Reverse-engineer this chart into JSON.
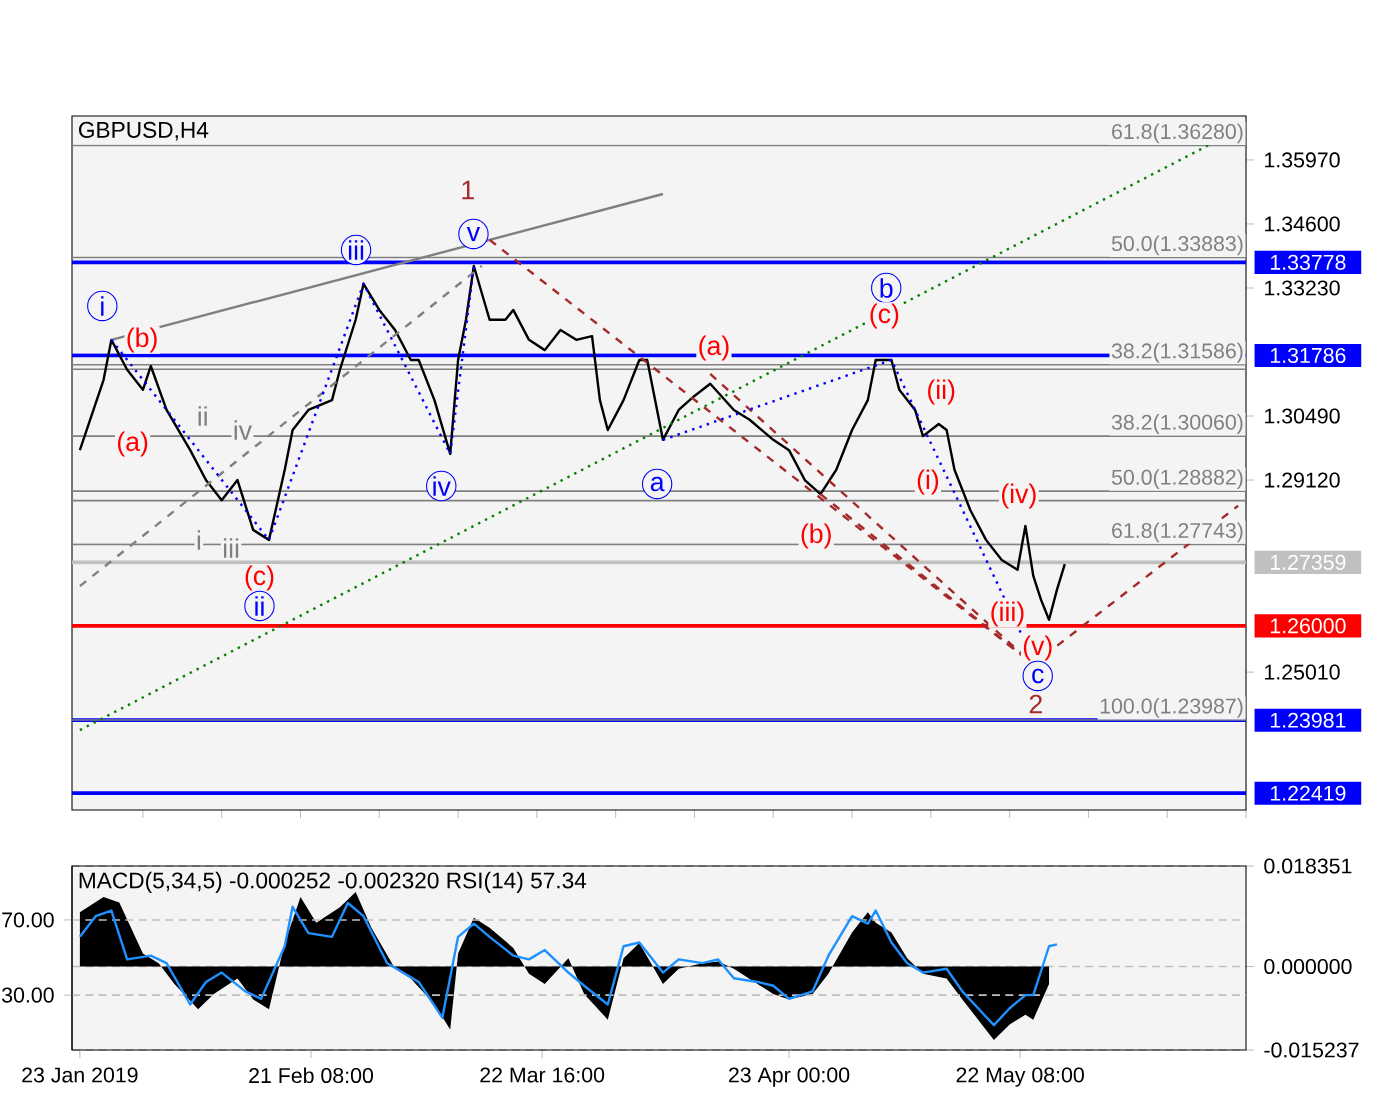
{
  "chart_data": [
    {
      "type": "line",
      "title": "GBPUSD,H4",
      "xlim": [
        "2019-01-22",
        "2019-06-20"
      ],
      "ylim": [
        1.2206,
        1.3691
      ],
      "tick_labels": "y",
      "yticks": [
        {
          "value": 1.3597,
          "label": "1.35970"
        },
        {
          "value": 1.346,
          "label": "1.34600"
        },
        {
          "value": 1.3323,
          "label": "1.33230"
        },
        {
          "value": 1.3049,
          "label": "1.30490"
        },
        {
          "value": 1.2912,
          "label": "1.29120"
        },
        {
          "value": 1.2501,
          "label": "1.25010"
        }
      ],
      "series": [
        {
          "color": "#000000",
          "x": [
            "2019-01-23",
            "2019-01-26",
            "2019-01-27",
            "2019-01-29",
            "2019-01-31",
            "2019-02-01",
            "2019-02-03",
            "2019-02-06",
            "2019-02-08",
            "2019-02-10",
            "2019-02-12",
            "2019-02-14",
            "2019-02-16",
            "2019-02-18",
            "2019-02-19",
            "2019-02-21",
            "2019-02-24",
            "2019-02-25",
            "2019-02-27",
            "2019-02-28",
            "2019-03-02",
            "2019-03-04",
            "2019-03-06",
            "2019-03-07",
            "2019-03-09",
            "2019-03-11",
            "2019-03-12",
            "2019-03-13",
            "2019-03-14",
            "2019-03-16",
            "2019-03-18",
            "2019-03-19",
            "2019-03-21",
            "2019-03-23",
            "2019-03-25",
            "2019-03-27",
            "2019-03-29",
            "2019-03-30",
            "2019-03-31",
            "2019-04-02",
            "2019-04-04",
            "2019-04-05",
            "2019-04-07",
            "2019-04-09",
            "2019-04-11",
            "2019-04-13",
            "2019-04-16",
            "2019-04-18",
            "2019-04-21",
            "2019-04-23",
            "2019-04-25",
            "2019-04-27",
            "2019-04-29",
            "2019-05-01",
            "2019-05-03",
            "2019-05-04",
            "2019-05-06",
            "2019-05-07",
            "2019-05-09",
            "2019-05-10",
            "2019-05-12",
            "2019-05-13",
            "2019-05-14",
            "2019-05-16",
            "2019-05-18",
            "2019-05-20",
            "2019-05-22",
            "2019-05-23",
            "2019-05-24",
            "2019-05-25",
            "2019-05-26",
            "2019-05-27",
            "2019-05-28"
          ],
          "values": [
            1.2976,
            1.3126,
            1.3212,
            1.3148,
            1.3105,
            1.3156,
            1.3062,
            1.2976,
            1.2912,
            1.2869,
            1.2912,
            1.2805,
            1.2784,
            1.2934,
            1.3019,
            1.3062,
            1.3083,
            1.3148,
            1.3255,
            1.3332,
            1.3276,
            1.3233,
            1.3169,
            1.3169,
            1.3083,
            1.2968,
            1.3169,
            1.3255,
            1.337,
            1.3255,
            1.3255,
            1.3276,
            1.3212,
            1.319,
            1.3233,
            1.3212,
            1.322,
            1.3083,
            1.3019,
            1.3083,
            1.3169,
            1.3169,
            1.2998,
            1.3062,
            1.3092,
            1.3118,
            1.3062,
            1.3041,
            1.2998,
            1.2976,
            1.2912,
            1.2882,
            1.2934,
            1.3019,
            1.3083,
            1.3169,
            1.3169,
            1.3105,
            1.3062,
            1.3006,
            1.3032,
            1.3019,
            1.2934,
            1.2848,
            1.2784,
            1.2741,
            1.272,
            1.2814,
            1.2707,
            1.2655,
            1.2613,
            1.2677,
            1.2732
          ]
        },
        {
          "color": "#008000",
          "line_style": "dotted",
          "x": [
            "2019-01-23",
            "2019-06-20"
          ],
          "values": [
            1.2377,
            1.367
          ]
        },
        {
          "color": "#808080",
          "x": [
            "2019-01-27",
            "2019-04-07"
          ],
          "values": [
            1.3212,
            1.3524
          ]
        },
        {
          "color": "#808080",
          "line_style": "dashed",
          "x": [
            "2019-01-23",
            "2019-03-15"
          ],
          "values": [
            1.2685,
            1.337
          ]
        },
        {
          "color": "#a52a2a",
          "line_style": "dashed",
          "x": [
            "2019-03-16",
            "2019-05-24",
            "2019-06-19"
          ],
          "values": [
            1.3426,
            1.2518,
            1.2857
          ]
        },
        {
          "color": "#a52a2a",
          "line_style": "dashed",
          "x": [
            "2019-04-13",
            "2019-05-24"
          ],
          "values": [
            1.3139,
            1.2518
          ]
        },
        {
          "color": "#a52a2a",
          "line_style": "dashed",
          "x": [
            "2019-04-27",
            "2019-05-24"
          ],
          "values": [
            1.2882,
            1.2518
          ]
        },
        {
          "color": "#0000ff",
          "line_style": "dotted",
          "x": [
            "2019-01-27",
            "2019-02-16",
            "2019-02-28",
            "2019-03-11",
            "2019-03-14"
          ],
          "values": [
            1.3212,
            1.2784,
            1.3332,
            1.2968,
            1.337
          ]
        },
        {
          "color": "#0000ff",
          "line_style": "dotted",
          "x": [
            "2019-04-07",
            "2019-05-06",
            "2019-05-25"
          ],
          "values": [
            1.2998,
            1.3169,
            1.2493
          ]
        }
      ],
      "ref_lines": [
        {
          "axis": "y",
          "value": 1.3628,
          "label": "61.8(1.36280)",
          "color": "#808080"
        },
        {
          "axis": "y",
          "value": 1.33883,
          "label": "50.0(1.33883)",
          "color": "#808080"
        },
        {
          "axis": "y",
          "value": 1.31586,
          "label": "38.2(1.31586)",
          "color": "#808080"
        },
        {
          "axis": "y",
          "value": 1.3149,
          "color": "#808080"
        },
        {
          "axis": "y",
          "value": 1.3006,
          "label": "38.2(1.30060)",
          "color": "#808080"
        },
        {
          "axis": "y",
          "value": 1.28882,
          "label": "50.0(1.28882)",
          "color": "#808080"
        },
        {
          "axis": "y",
          "value": 1.2868,
          "color": "#808080"
        },
        {
          "axis": "y",
          "value": 1.27743,
          "label": "61.8(1.27743)",
          "color": "#808080"
        },
        {
          "axis": "y",
          "value": 1.33778,
          "label": "1.33778",
          "color": "#0000ff"
        },
        {
          "axis": "y",
          "value": 1.31786,
          "label": "1.31786",
          "color": "#0000ff"
        },
        {
          "axis": "y",
          "value": 1.27359,
          "label": "1.27359",
          "color": "#c0c0c0"
        },
        {
          "axis": "y",
          "value": 1.26,
          "label": "1.26000",
          "color": "#ff0000"
        },
        {
          "axis": "y",
          "value": 1.23981,
          "label": "1.23981",
          "color": "#0000ff"
        },
        {
          "axis": "y",
          "value": 1.22419,
          "label": "1.22419",
          "color": "#0000ff"
        },
        {
          "axis": "y",
          "value": 1.23987,
          "label": "100.0(1.23987)",
          "color": "#808080"
        }
      ],
      "annotations": [
        "1",
        "v",
        "iii",
        "i",
        "(b)",
        "(a)",
        "ii",
        "iv",
        "i",
        "iii",
        "(c)",
        "ii",
        "iv",
        "a",
        "(a)",
        "(b)",
        "b",
        "(c)",
        "(ii)",
        "(i)",
        "(iv)",
        "(iii)",
        "(v)",
        "c",
        "2"
      ]
    },
    {
      "type": "area",
      "title": "MACD(5,34,5) -0.000252 -0.002320 RSI(14) 57.34",
      "xlim": [
        "2019-01-22",
        "2019-06-20"
      ],
      "xticks": [
        {
          "value": "2019-01-23",
          "label": "23 Jan 2019"
        },
        {
          "value": "2019-02-21T08:00",
          "label": "21 Feb 08:00"
        },
        {
          "value": "2019-03-22T16:00",
          "label": "22 Mar 16:00"
        },
        {
          "value": "2019-04-23",
          "label": "23 Apr 00:00"
        },
        {
          "value": "2019-05-22T08:00",
          "label": "22 May 08:00"
        }
      ],
      "ylim": [
        -0.015237,
        0.018351
      ],
      "grid": "y",
      "yticks": [
        {
          "value": 0.018351,
          "label": "0.018351"
        },
        {
          "value": 0,
          "label": "0.000000"
        },
        {
          "value": -0.015237,
          "label": "-0.015237"
        }
      ],
      "y2lim": [
        0.8,
        98.7
      ],
      "y2ticks": [
        {
          "value": 70,
          "label": "70.00"
        },
        {
          "value": 30,
          "label": "30.00"
        }
      ],
      "series": [
        {
          "type": "area",
          "color": "#000000",
          "x": [
            "2019-01-23",
            "2019-01-26",
            "2019-01-28",
            "2019-01-31",
            "2019-02-02",
            "2019-02-04",
            "2019-02-07",
            "2019-02-09",
            "2019-02-12",
            "2019-02-14",
            "2019-02-16",
            "2019-02-18",
            "2019-02-20",
            "2019-02-22",
            "2019-02-25",
            "2019-02-27",
            "2019-03-01",
            "2019-03-04",
            "2019-03-06",
            "2019-03-09",
            "2019-03-11",
            "2019-03-12",
            "2019-03-14",
            "2019-03-16",
            "2019-03-19",
            "2019-03-21",
            "2019-03-23",
            "2019-03-26",
            "2019-03-28",
            "2019-03-31",
            "2019-04-02",
            "2019-04-04",
            "2019-04-07",
            "2019-04-09",
            "2019-04-12",
            "2019-04-14",
            "2019-04-16",
            "2019-04-19",
            "2019-04-21",
            "2019-04-23",
            "2019-04-26",
            "2019-04-28",
            "2019-05-01",
            "2019-05-03",
            "2019-05-04",
            "2019-05-06",
            "2019-05-08",
            "2019-05-10",
            "2019-05-13",
            "2019-05-15",
            "2019-05-17",
            "2019-05-19",
            "2019-05-21",
            "2019-05-23",
            "2019-05-24",
            "2019-05-26"
          ],
          "values": [
            0.0099,
            0.0127,
            0.0117,
            0.0024,
            0.0006,
            -0.0032,
            -0.0078,
            -0.005,
            -0.0022,
            -0.006,
            -0.0078,
            0.0043,
            0.0127,
            0.008,
            0.0108,
            0.0136,
            0.0071,
            -0.0004,
            -0.0022,
            -0.0069,
            -0.0115,
            0.0024,
            0.0089,
            0.0071,
            0.0034,
            -0.0013,
            -0.0032,
            0.0015,
            -0.005,
            -0.0097,
            0.0015,
            0.0043,
            -0.0032,
            -0.0004,
            0.0006,
            0.0009,
            -0.0004,
            -0.0032,
            -0.005,
            -0.006,
            -0.005,
            -0.0013,
            0.0062,
            0.0099,
            0.008,
            0.0062,
            0.0015,
            -0.0013,
            -0.0022,
            -0.006,
            -0.0097,
            -0.0134,
            -0.0106,
            -0.0088,
            -0.0097,
            -0.0032
          ]
        },
        {
          "type": "line",
          "axis": "y2",
          "color": "#1e90ff",
          "x": [
            "2019-01-23",
            "2019-01-25",
            "2019-01-27",
            "2019-01-29",
            "2019-02-01",
            "2019-02-03",
            "2019-02-06",
            "2019-02-08",
            "2019-02-10",
            "2019-02-13",
            "2019-02-15",
            "2019-02-18",
            "2019-02-19",
            "2019-02-21",
            "2019-02-24",
            "2019-02-26",
            "2019-02-28",
            "2019-03-03",
            "2019-03-05",
            "2019-03-07",
            "2019-03-10",
            "2019-03-12",
            "2019-03-14",
            "2019-03-16",
            "2019-03-19",
            "2019-03-21",
            "2019-03-23",
            "2019-03-26",
            "2019-03-28",
            "2019-03-31",
            "2019-04-02",
            "2019-04-04",
            "2019-04-07",
            "2019-04-09",
            "2019-04-12",
            "2019-04-14",
            "2019-04-16",
            "2019-04-19",
            "2019-04-21",
            "2019-04-23",
            "2019-04-26",
            "2019-04-28",
            "2019-05-01",
            "2019-05-03",
            "2019-05-04",
            "2019-05-06",
            "2019-05-08",
            "2019-05-10",
            "2019-05-13",
            "2019-05-15",
            "2019-05-17",
            "2019-05-19",
            "2019-05-21",
            "2019-05-23",
            "2019-05-24",
            "2019-05-26",
            "2019-05-27"
          ],
          "values": [
            61,
            72,
            75,
            49,
            51,
            47,
            25,
            37,
            42,
            32,
            28,
            56,
            77,
            63,
            61,
            79,
            72,
            47,
            42,
            37,
            18,
            61,
            68,
            61,
            51,
            49,
            54,
            42,
            35,
            25,
            56,
            58,
            42,
            49,
            47,
            49,
            39,
            37,
            35,
            28,
            32,
            51,
            72,
            68,
            75,
            58,
            47,
            42,
            44,
            32,
            23,
            14,
            23,
            30,
            30,
            56,
            57
          ]
        }
      ]
    }
  ]
}
